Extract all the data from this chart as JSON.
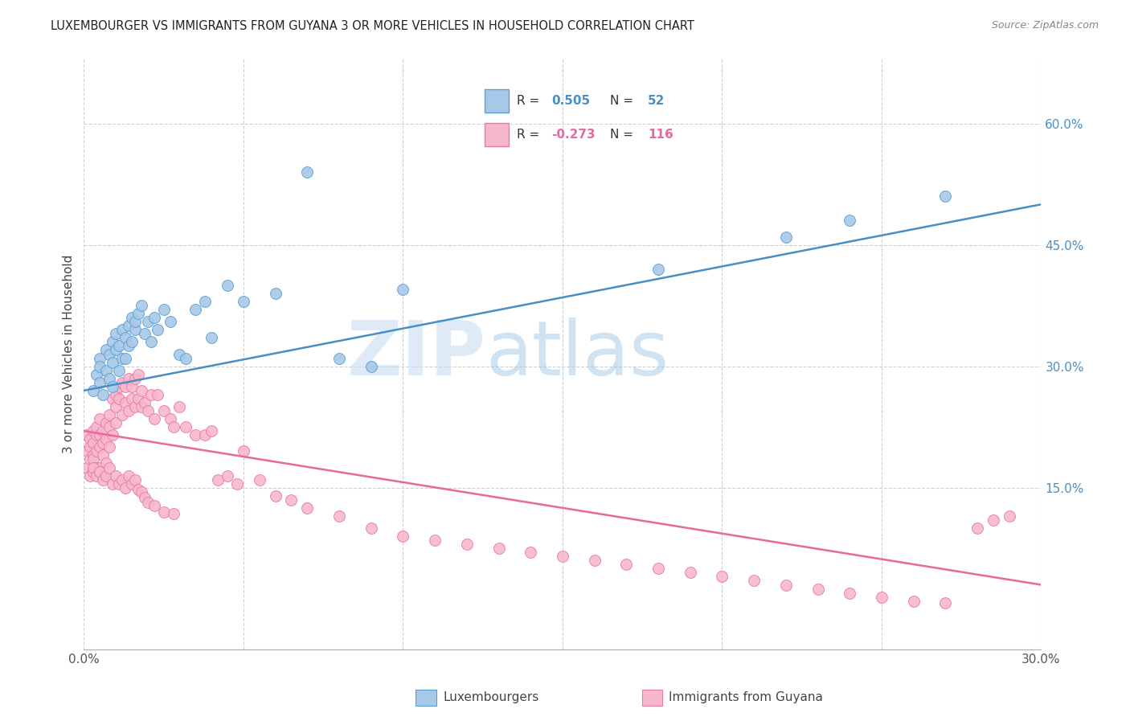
{
  "title": "LUXEMBOURGER VS IMMIGRANTS FROM GUYANA 3 OR MORE VEHICLES IN HOUSEHOLD CORRELATION CHART",
  "source": "Source: ZipAtlas.com",
  "ylabel": "3 or more Vehicles in Household",
  "xlim": [
    0.0,
    0.3
  ],
  "ylim": [
    -0.05,
    0.68
  ],
  "xtick_labels": [
    "0.0%",
    "",
    "",
    "",
    "",
    "",
    "30.0%"
  ],
  "xtick_vals": [
    0.0,
    0.05,
    0.1,
    0.15,
    0.2,
    0.25,
    0.3
  ],
  "ytick_labels_right": [
    "60.0%",
    "45.0%",
    "30.0%",
    "15.0%"
  ],
  "ytick_vals": [
    0.6,
    0.45,
    0.3,
    0.15
  ],
  "blue_R": "0.505",
  "blue_N": "52",
  "pink_R": "-0.273",
  "pink_N": "116",
  "blue_color": "#a8c8e8",
  "pink_color": "#f8b8cc",
  "blue_edge_color": "#5a9fd4",
  "pink_edge_color": "#e878a8",
  "blue_line_color": "#4a8fc4",
  "pink_line_color": "#e868a0",
  "legend_label_blue": "Luxembourgers",
  "legend_label_pink": "Immigrants from Guyana",
  "watermark_zip": "ZIP",
  "watermark_atlas": "atlas",
  "blue_trend_x0": 0.0,
  "blue_trend_y0": 0.27,
  "blue_trend_x1": 0.3,
  "blue_trend_y1": 0.5,
  "pink_trend_x0": 0.0,
  "pink_trend_y0": 0.22,
  "pink_trend_x1": 0.3,
  "pink_trend_y1": 0.03,
  "blue_scatter_x": [
    0.003,
    0.004,
    0.005,
    0.005,
    0.005,
    0.006,
    0.007,
    0.007,
    0.008,
    0.008,
    0.009,
    0.009,
    0.009,
    0.01,
    0.01,
    0.011,
    0.011,
    0.012,
    0.012,
    0.013,
    0.013,
    0.014,
    0.014,
    0.015,
    0.015,
    0.016,
    0.016,
    0.017,
    0.018,
    0.019,
    0.02,
    0.021,
    0.022,
    0.023,
    0.025,
    0.027,
    0.03,
    0.032,
    0.035,
    0.038,
    0.04,
    0.045,
    0.05,
    0.06,
    0.07,
    0.08,
    0.09,
    0.1,
    0.18,
    0.22,
    0.24,
    0.27
  ],
  "blue_scatter_y": [
    0.27,
    0.29,
    0.31,
    0.28,
    0.3,
    0.265,
    0.32,
    0.295,
    0.285,
    0.315,
    0.33,
    0.275,
    0.305,
    0.32,
    0.34,
    0.295,
    0.325,
    0.31,
    0.345,
    0.335,
    0.31,
    0.35,
    0.325,
    0.36,
    0.33,
    0.345,
    0.355,
    0.365,
    0.375,
    0.34,
    0.355,
    0.33,
    0.36,
    0.345,
    0.37,
    0.355,
    0.315,
    0.31,
    0.37,
    0.38,
    0.335,
    0.4,
    0.38,
    0.39,
    0.54,
    0.31,
    0.3,
    0.395,
    0.42,
    0.46,
    0.48,
    0.51
  ],
  "pink_scatter_x": [
    0.001,
    0.001,
    0.001,
    0.002,
    0.002,
    0.002,
    0.002,
    0.003,
    0.003,
    0.003,
    0.003,
    0.003,
    0.004,
    0.004,
    0.004,
    0.004,
    0.005,
    0.005,
    0.005,
    0.005,
    0.006,
    0.006,
    0.006,
    0.006,
    0.007,
    0.007,
    0.007,
    0.008,
    0.008,
    0.008,
    0.009,
    0.009,
    0.01,
    0.01,
    0.01,
    0.011,
    0.011,
    0.012,
    0.012,
    0.013,
    0.013,
    0.014,
    0.014,
    0.015,
    0.015,
    0.016,
    0.016,
    0.017,
    0.017,
    0.018,
    0.018,
    0.019,
    0.02,
    0.021,
    0.022,
    0.023,
    0.025,
    0.027,
    0.028,
    0.03,
    0.032,
    0.035,
    0.038,
    0.04,
    0.042,
    0.045,
    0.048,
    0.05,
    0.055,
    0.06,
    0.065,
    0.07,
    0.08,
    0.09,
    0.1,
    0.11,
    0.12,
    0.13,
    0.14,
    0.15,
    0.16,
    0.17,
    0.18,
    0.19,
    0.2,
    0.21,
    0.22,
    0.23,
    0.24,
    0.25,
    0.26,
    0.27,
    0.28,
    0.285,
    0.29,
    0.003,
    0.004,
    0.005,
    0.006,
    0.007,
    0.008,
    0.009,
    0.01,
    0.011,
    0.012,
    0.013,
    0.014,
    0.015,
    0.016,
    0.017,
    0.018,
    0.019,
    0.02,
    0.022,
    0.025,
    0.028
  ],
  "pink_scatter_y": [
    0.215,
    0.195,
    0.175,
    0.21,
    0.185,
    0.2,
    0.165,
    0.22,
    0.19,
    0.205,
    0.17,
    0.185,
    0.215,
    0.195,
    0.175,
    0.225,
    0.2,
    0.215,
    0.175,
    0.235,
    0.205,
    0.19,
    0.22,
    0.165,
    0.21,
    0.23,
    0.18,
    0.225,
    0.2,
    0.24,
    0.215,
    0.26,
    0.25,
    0.23,
    0.265,
    0.26,
    0.275,
    0.24,
    0.28,
    0.255,
    0.275,
    0.245,
    0.285,
    0.26,
    0.275,
    0.25,
    0.285,
    0.26,
    0.29,
    0.25,
    0.27,
    0.255,
    0.245,
    0.265,
    0.235,
    0.265,
    0.245,
    0.235,
    0.225,
    0.25,
    0.225,
    0.215,
    0.215,
    0.22,
    0.16,
    0.165,
    0.155,
    0.195,
    0.16,
    0.14,
    0.135,
    0.125,
    0.115,
    0.1,
    0.09,
    0.085,
    0.08,
    0.075,
    0.07,
    0.065,
    0.06,
    0.055,
    0.05,
    0.045,
    0.04,
    0.035,
    0.03,
    0.025,
    0.02,
    0.015,
    0.01,
    0.008,
    0.1,
    0.11,
    0.115,
    0.175,
    0.165,
    0.17,
    0.16,
    0.165,
    0.175,
    0.155,
    0.165,
    0.155,
    0.16,
    0.15,
    0.165,
    0.155,
    0.16,
    0.148,
    0.145,
    0.138,
    0.132,
    0.128,
    0.12,
    0.118
  ]
}
